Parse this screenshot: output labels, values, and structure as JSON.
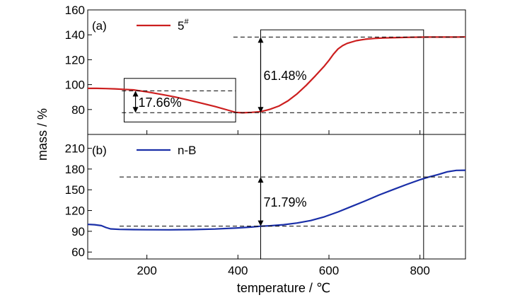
{
  "chart_data": {
    "type": "line",
    "xlabel": "temperature / ℃",
    "ylabel": "mass / %",
    "xlim": [
      70,
      900
    ],
    "x_ticks": [
      200,
      400,
      600,
      800
    ],
    "grid": false,
    "legend_placement": "top-left",
    "panels": [
      {
        "label": "(a)",
        "series": [
          {
            "name": "5",
            "name_sup": "#",
            "color": "#cc1f1f",
            "x": [
              70,
              90,
              110,
              130,
              150,
              170,
              200,
              230,
              260,
              290,
              320,
              350,
              380,
              395,
              410,
              430,
              450,
              470,
              490,
              510,
              530,
              550,
              570,
              590,
              600,
              610,
              620,
              630,
              640,
              660,
              680,
              700,
              720,
              750,
              780,
              800,
              820,
              850,
              880,
              900
            ],
            "y": [
              97,
              97,
              96.8,
              96.6,
              96.2,
              95.8,
              94.2,
              92.3,
              90.2,
              87.7,
              85.1,
              82.4,
              79.3,
              77.7,
              77.4,
              77.7,
              78.3,
              80.1,
              82.8,
              87,
              92.6,
              99.4,
              107,
              115,
              119.5,
              124.5,
              128.7,
              131.3,
              133.1,
              135.3,
              136.5,
              137.1,
              137.5,
              137.8,
              138,
              138.1,
              138.2,
              138.2,
              138.2,
              138.3
            ]
          }
        ],
        "ylim": [
          60,
          160
        ],
        "y_ticks": [
          80,
          100,
          120,
          140,
          160
        ],
        "annotations": [
          {
            "text": "17.66%",
            "x_from": 145,
            "x_to": 395,
            "y_from": 77.5,
            "y_to": 95,
            "arrow_x": 175
          },
          {
            "text": "61.48%",
            "x_from": 390,
            "x_to": 900,
            "y_from": 77.5,
            "y_to": 138.2,
            "arrow_x": 450
          }
        ],
        "boxes": [
          {
            "x_from": 150,
            "x_to": 395,
            "y_from": 70,
            "y_to": 105
          },
          {
            "x_from": 450,
            "x_to": 808,
            "y_from": 60,
            "y_to": 144
          }
        ]
      },
      {
        "label": "(b)",
        "series": [
          {
            "name": "n-B",
            "name_sup": "",
            "color": "#1a2fa8",
            "x": [
              70,
              85,
              100,
              110,
              120,
              140,
              170,
              200,
              250,
              300,
              350,
              400,
              430,
              450,
              470,
              500,
              530,
              560,
              590,
              620,
              650,
              680,
              710,
              740,
              770,
              800,
              820,
              840,
              860,
              880,
              900
            ],
            "y": [
              100,
              99.5,
              98.2,
              95.5,
              93.5,
              92.8,
              92.4,
              92.2,
              92.1,
              92.4,
              93.3,
              94.9,
              96.1,
              97.4,
              98,
              99.5,
              102,
              105.5,
              111,
              118,
              126,
              134,
              142.5,
              150,
              157.5,
              164.5,
              168.5,
              172,
              176,
              178,
              178.3
            ]
          }
        ],
        "ylim": [
          50,
          230
        ],
        "y_ticks": [
          60,
          90,
          120,
          150,
          180,
          210
        ],
        "annotations": [
          {
            "text": "71.79%",
            "x_from": 140,
            "x_to": 900,
            "y_from": 97.4,
            "y_to": 168.5,
            "arrow_x": 450
          }
        ],
        "boxes": [
          {
            "x_from": 450,
            "x_to": 808,
            "y_from": 50,
            "y_to": 230
          }
        ]
      }
    ]
  }
}
